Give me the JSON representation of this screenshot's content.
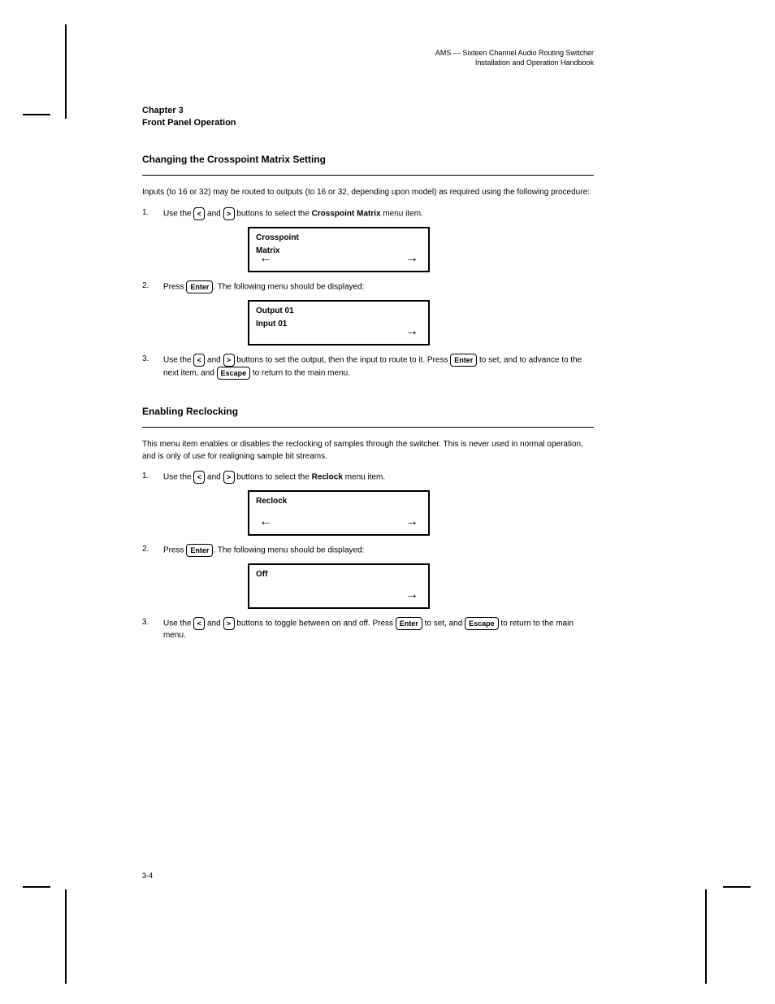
{
  "header": {
    "title": "AMS — Sixteen Channel Audio Routing Switcher",
    "subtitle": "Installation and Operation Handbook"
  },
  "chapter": {
    "line1": "Chapter 3",
    "line2": "Front Panel Operation"
  },
  "section1": {
    "title": "Changing the Crosspoint Matrix Setting",
    "intro": "Inputs (to 16 or 32) may be routed to outputs (to 16 or 32, depending upon model) as required using the following procedure:",
    "steps": {
      "s1_num": "1.",
      "s1_text_a": "Use the ",
      "s1_text_b": " and ",
      "s1_text_c": " buttons to select the ",
      "s1_bold": "Crosspoint Matrix",
      "s1_text_d": " menu item.",
      "s2_num": "2.",
      "s2_text_a": "Press ",
      "s2_text_b": ". The following menu should be displayed:",
      "s3_num": "3.",
      "s3_text_a": "Use the ",
      "s3_text_b": " and ",
      "s3_text_c": " buttons to set the output, then the input to route to it. Press ",
      "s3_text_d": " to set, and to advance to the next item, and ",
      "s3_text_e": " to return to the main menu."
    },
    "lcd1": {
      "line1": "Crosspoint",
      "line2": "Matrix"
    },
    "lcd2": {
      "line1": "Output 01",
      "line2": "Input 01"
    }
  },
  "section2": {
    "title": "Enabling Reclocking",
    "intro": "This menu item enables or disables the reclocking of samples through the switcher. This is never used in normal operation, and is only of use for realigning sample bit streams.",
    "steps": {
      "s1_num": "1.",
      "s1_text_a": "Use the ",
      "s1_text_b": " and ",
      "s1_text_c": " buttons to select the ",
      "s1_bold": "Reclock",
      "s1_text_d": " menu item.",
      "s2_num": "2.",
      "s2_text_a": "Press ",
      "s2_text_b": ". The following menu should be displayed:",
      "s3_num": "3.",
      "s3_text_a": "Use the ",
      "s3_text_b": " and ",
      "s3_text_c": " buttons to toggle between on and off. Press ",
      "s3_text_d": " to set, and ",
      "s3_text_e": " to return to the main menu."
    },
    "lcd1": {
      "line1": "Reclock",
      "line2": ""
    },
    "lcd2": {
      "line1": "Off"
    }
  },
  "keys": {
    "lt": "<",
    "gt": ">",
    "enter": "Enter",
    "escape": "Escape"
  },
  "footer": {
    "page": "3-4"
  }
}
